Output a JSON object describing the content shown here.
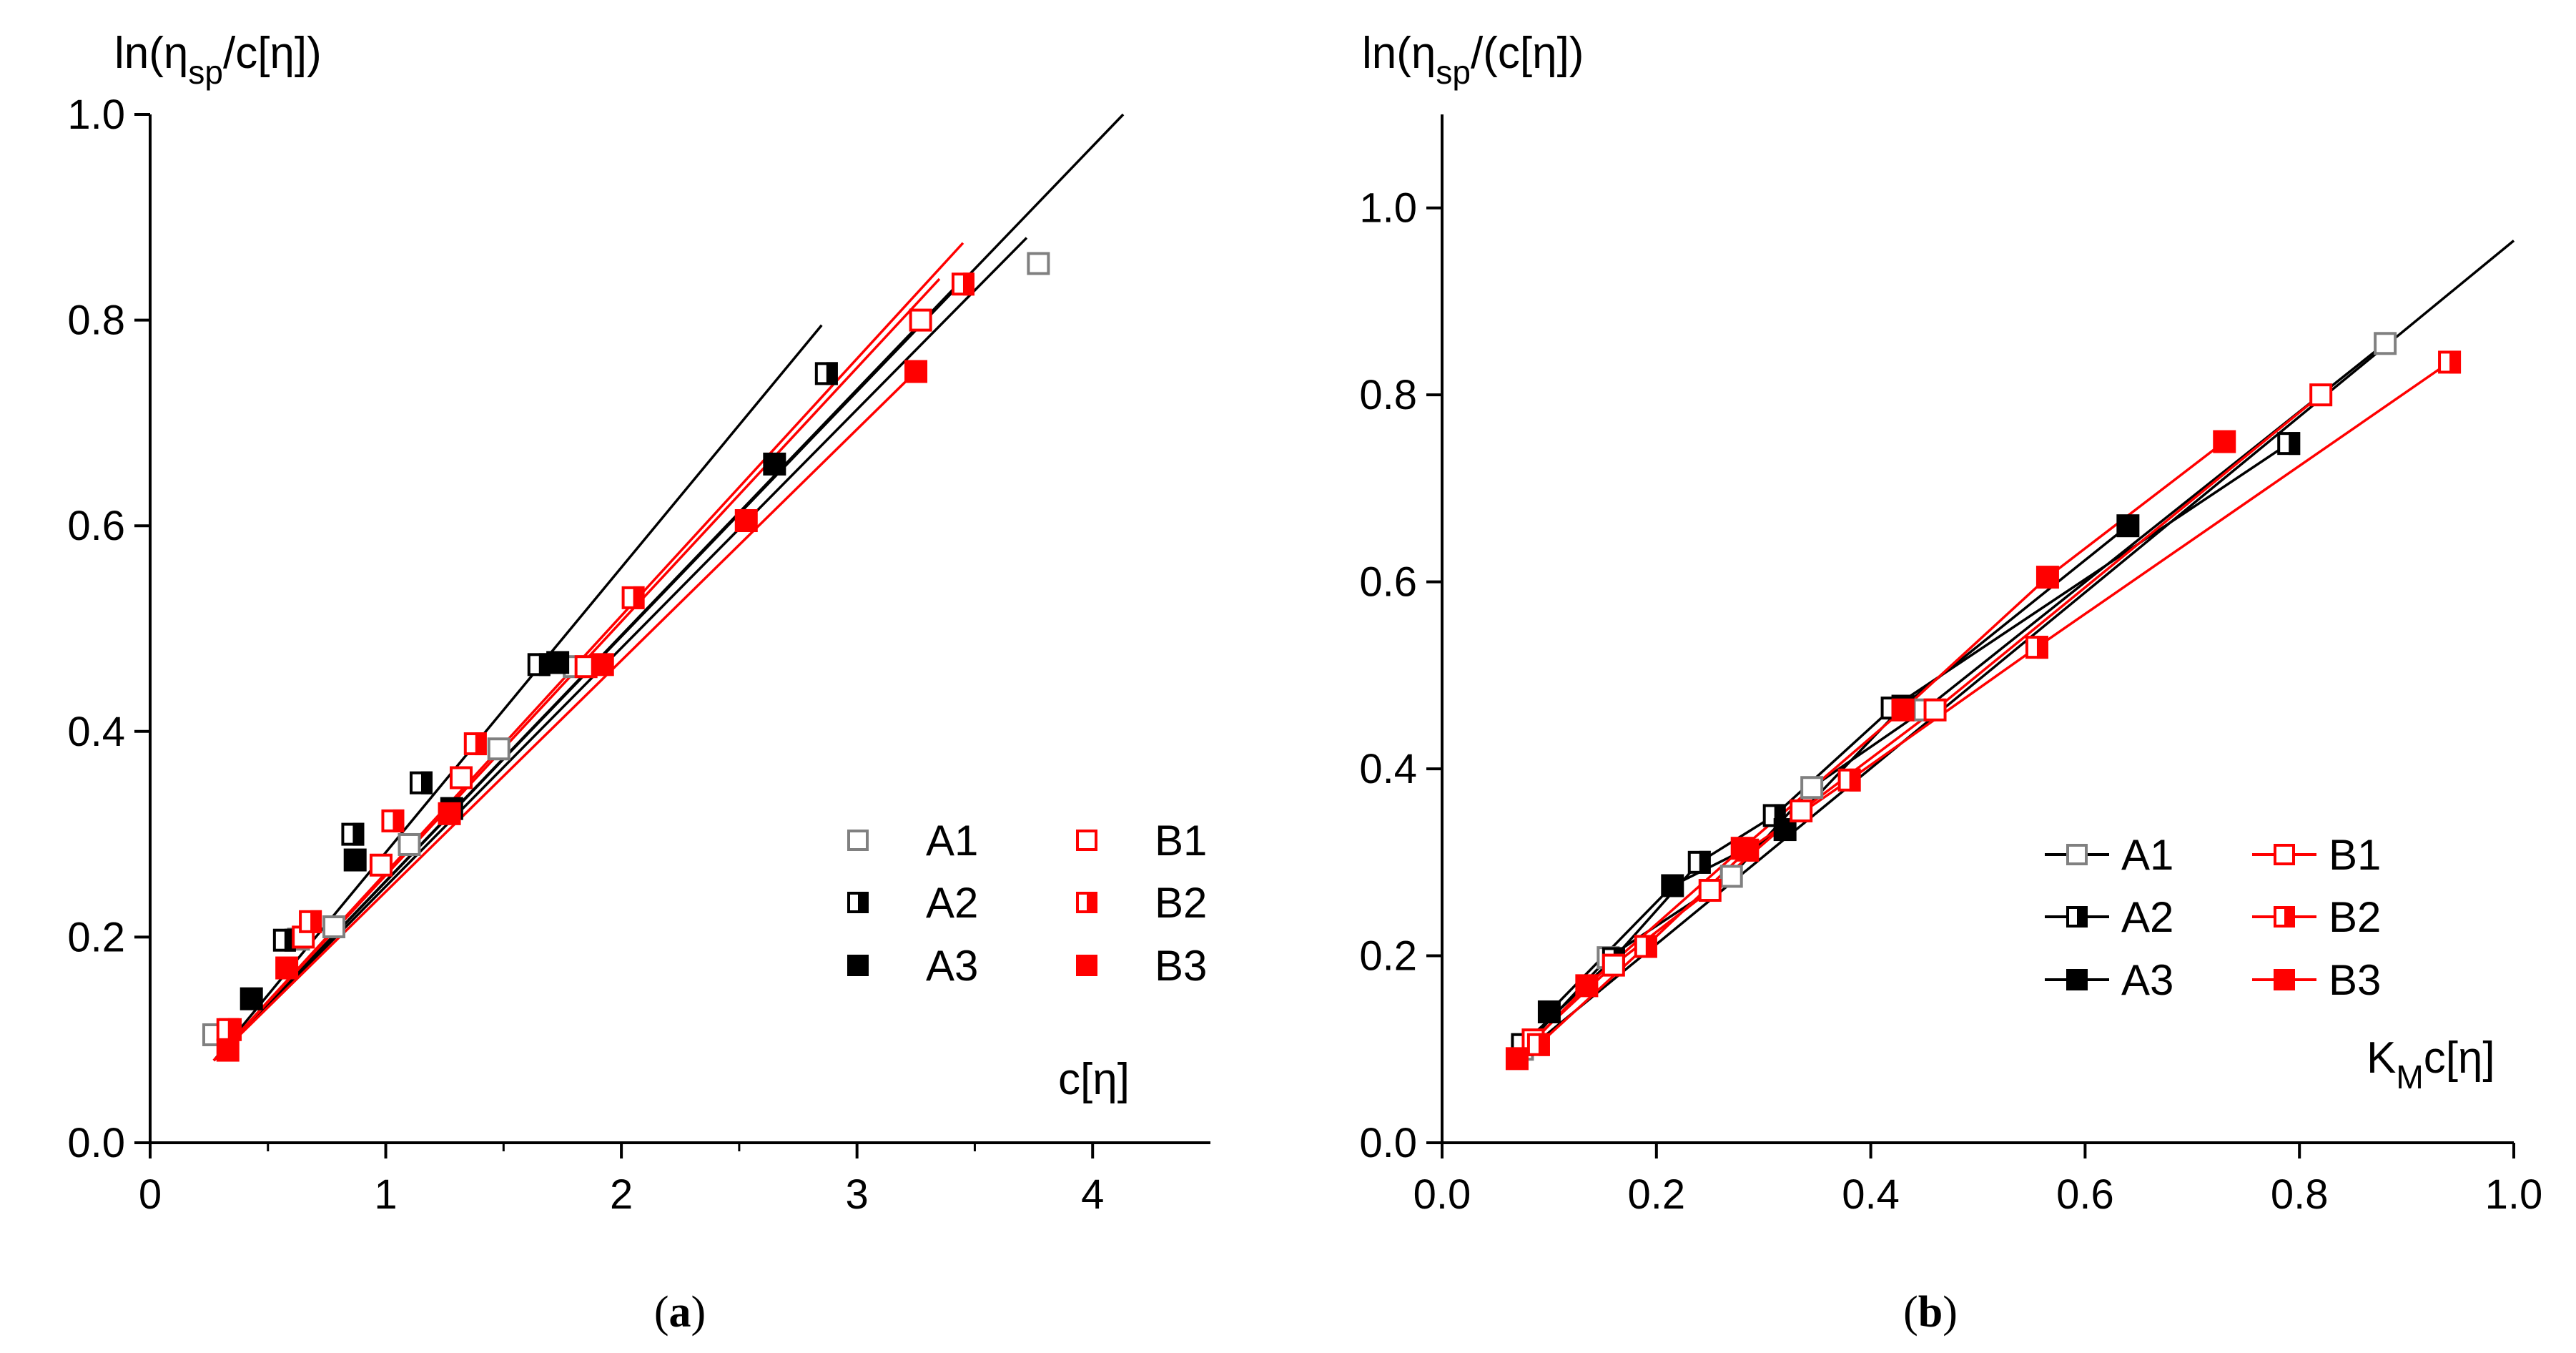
{
  "chart_data": [
    {
      "type": "scatter",
      "caption_open": "(",
      "caption_label": "a",
      "caption_close": ")",
      "ylabel_main": "ln(η",
      "ylabel_sub": "sp",
      "ylabel_tail": "/c[η])",
      "xlabel_main": "c[η]",
      "xlim": [
        0,
        4.5
      ],
      "ylim": [
        0,
        1.0
      ],
      "xticks": [
        0,
        1,
        2,
        3,
        4
      ],
      "xtick_labels": [
        "0",
        "1",
        "2",
        "3",
        "4"
      ],
      "yticks": [
        0.0,
        0.2,
        0.4,
        0.6,
        0.8,
        1.0
      ],
      "ytick_labels": [
        "0.0",
        "0.2",
        "0.4",
        "0.6",
        "0.8",
        "1.0"
      ],
      "legend_position": "bottom-right",
      "legend_lines": false,
      "series": [
        {
          "name": "A1",
          "color": "#808080",
          "marker": "open",
          "points": [
            [
              0.27,
              0.105
            ],
            [
              0.63,
              0.198
            ],
            [
              0.78,
              0.21
            ],
            [
              1.1,
              0.29
            ],
            [
              1.48,
              0.383
            ],
            [
              1.8,
              0.463
            ],
            [
              3.77,
              0.855
            ]
          ]
        },
        {
          "name": "A2",
          "color": "#000000",
          "marker": "half",
          "points": [
            [
              0.57,
              0.197
            ],
            [
              0.86,
              0.3
            ],
            [
              1.15,
              0.35
            ],
            [
              1.65,
              0.465
            ],
            [
              2.87,
              0.748
            ]
          ]
        },
        {
          "name": "A3",
          "color": "#000000",
          "marker": "filled",
          "points": [
            [
              0.43,
              0.14
            ],
            [
              0.87,
              0.275
            ],
            [
              1.28,
              0.325
            ],
            [
              1.73,
              0.467
            ],
            [
              2.65,
              0.66
            ]
          ]
        },
        {
          "name": "B1",
          "color": "#ff0000",
          "marker": "open",
          "points": [
            [
              0.34,
              0.11
            ],
            [
              0.65,
              0.2
            ],
            [
              0.98,
              0.27
            ],
            [
              1.32,
              0.355
            ],
            [
              1.85,
              0.463
            ],
            [
              3.27,
              0.8
            ]
          ]
        },
        {
          "name": "B2",
          "color": "#ff0000",
          "marker": "half",
          "points": [
            [
              0.33,
              0.11
            ],
            [
              0.68,
              0.215
            ],
            [
              1.03,
              0.313
            ],
            [
              1.38,
              0.388
            ],
            [
              2.05,
              0.53
            ],
            [
              3.45,
              0.835
            ]
          ]
        },
        {
          "name": "B3",
          "color": "#ff0000",
          "marker": "filled",
          "points": [
            [
              0.33,
              0.09
            ],
            [
              0.58,
              0.17
            ],
            [
              1.27,
              0.32
            ],
            [
              1.92,
              0.465
            ],
            [
              2.53,
              0.605
            ],
            [
              3.25,
              0.75
            ]
          ]
        }
      ],
      "fit_lines": [
        {
          "color": "#000000",
          "from": [
            0.27,
            0.08
          ],
          "to": [
            2.85,
            0.795
          ]
        },
        {
          "color": "#000000",
          "from": [
            0.27,
            0.08
          ],
          "to": [
            4.13,
            1.0
          ]
        },
        {
          "color": "#000000",
          "from": [
            0.27,
            0.08
          ],
          "to": [
            3.72,
            0.88
          ]
        },
        {
          "color": "#000000",
          "from": [
            0.27,
            0.08
          ],
          "to": [
            3.45,
            0.84
          ]
        },
        {
          "color": "#ff0000",
          "from": [
            0.27,
            0.08
          ],
          "to": [
            3.45,
            0.875
          ]
        },
        {
          "color": "#ff0000",
          "from": [
            0.27,
            0.08
          ],
          "to": [
            3.35,
            0.84
          ]
        },
        {
          "color": "#ff0000",
          "from": [
            0.27,
            0.08
          ],
          "to": [
            3.25,
            0.75
          ]
        }
      ]
    },
    {
      "type": "line",
      "caption_open": "(",
      "caption_label": "b",
      "caption_close": ")",
      "ylabel_main": "ln(η",
      "ylabel_sub": "sp",
      "ylabel_tail": "/(c[η])",
      "xlabel_main": "K",
      "xlabel_sub": "M",
      "xlabel_tail": "c[η]",
      "xlim": [
        0,
        1.0
      ],
      "ylim": [
        0,
        1.1
      ],
      "xticks": [
        0,
        0.2,
        0.4,
        0.6,
        0.8,
        1.0
      ],
      "xtick_labels": [
        "0.0",
        "0.2",
        "0.4",
        "0.6",
        "0.8",
        "1.0"
      ],
      "yticks": [
        0.0,
        0.2,
        0.4,
        0.6,
        0.8,
        1.0
      ],
      "ytick_labels": [
        "0.0",
        "0.2",
        "0.4",
        "0.6",
        "0.8",
        "1.0"
      ],
      "legend_position": "bottom-right",
      "legend_lines": true,
      "series": [
        {
          "name": "A1",
          "color": "#808080",
          "marker": "open",
          "points": [
            [
              0.075,
              0.1
            ],
            [
              0.155,
              0.198
            ],
            [
              0.27,
              0.285
            ],
            [
              0.345,
              0.38
            ],
            [
              0.45,
              0.463
            ],
            [
              0.88,
              0.855
            ]
          ]
        },
        {
          "name": "A2",
          "color": "#000000",
          "marker": "half",
          "points": [
            [
              0.075,
              0.105
            ],
            [
              0.16,
              0.197
            ],
            [
              0.24,
              0.3
            ],
            [
              0.31,
              0.35
            ],
            [
              0.42,
              0.465
            ],
            [
              0.79,
              0.748
            ]
          ]
        },
        {
          "name": "A3",
          "color": "#000000",
          "marker": "filled",
          "points": [
            [
              0.1,
              0.14
            ],
            [
              0.215,
              0.275
            ],
            [
              0.32,
              0.335
            ],
            [
              0.43,
              0.467
            ],
            [
              0.64,
              0.66
            ]
          ]
        },
        {
          "name": "B1",
          "color": "#ff0000",
          "marker": "open",
          "points": [
            [
              0.085,
              0.11
            ],
            [
              0.16,
              0.19
            ],
            [
              0.25,
              0.27
            ],
            [
              0.335,
              0.355
            ],
            [
              0.46,
              0.463
            ],
            [
              0.82,
              0.8
            ]
          ]
        },
        {
          "name": "B2",
          "color": "#ff0000",
          "marker": "half",
          "points": [
            [
              0.09,
              0.105
            ],
            [
              0.19,
              0.21
            ],
            [
              0.285,
              0.313
            ],
            [
              0.38,
              0.388
            ],
            [
              0.555,
              0.53
            ],
            [
              0.94,
              0.835
            ]
          ]
        },
        {
          "name": "B3",
          "color": "#ff0000",
          "marker": "filled",
          "points": [
            [
              0.07,
              0.09
            ],
            [
              0.135,
              0.168
            ],
            [
              0.28,
              0.315
            ],
            [
              0.43,
              0.463
            ],
            [
              0.565,
              0.605
            ],
            [
              0.73,
              0.75
            ]
          ]
        }
      ],
      "fit_lines": [
        {
          "color": "#000000",
          "from": [
            0.07,
            0.09
          ],
          "to": [
            1.0,
            0.965
          ]
        }
      ]
    }
  ],
  "legend_labels": [
    "A1",
    "A2",
    "A3",
    "B1",
    "B2",
    "B3"
  ]
}
